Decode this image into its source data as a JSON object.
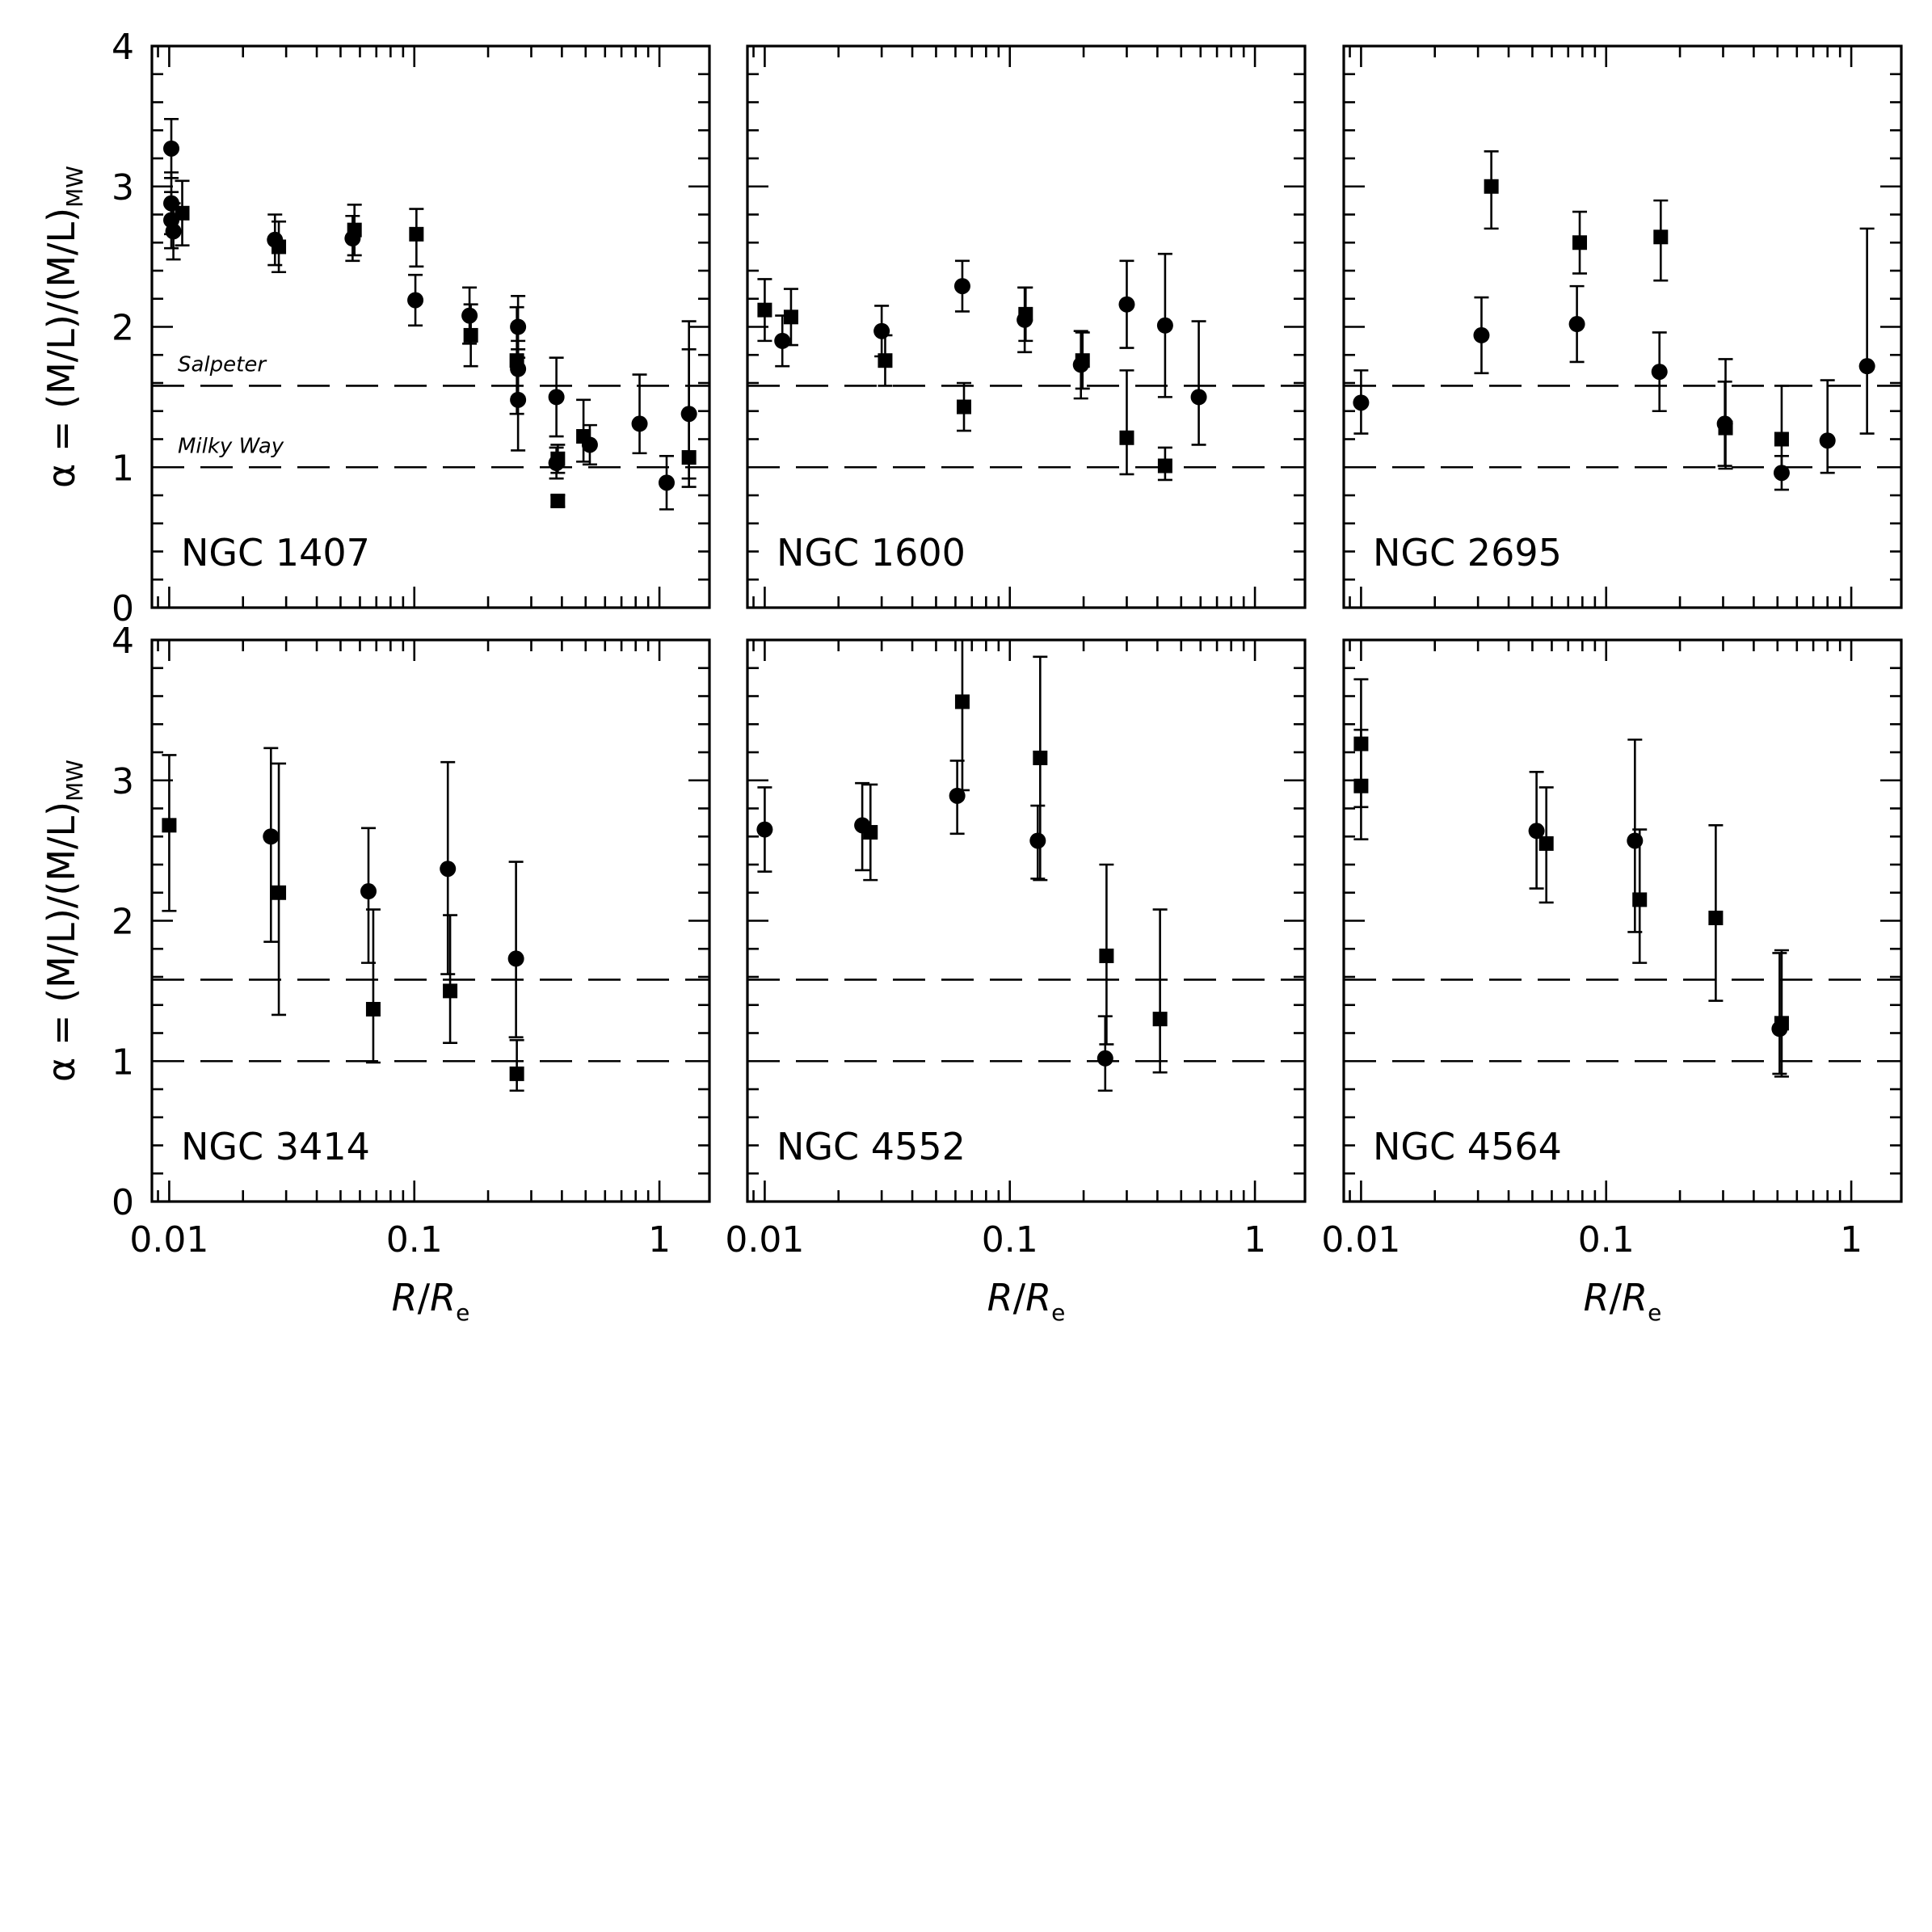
{
  "chart_data": {
    "type": "scatter",
    "layout": "2x3 grid of panels sharing axes",
    "xscale": "log",
    "xlim": [
      0.0085,
      1.6
    ],
    "ylim": [
      0,
      4
    ],
    "x_ticks": [
      "0.01",
      "0.1",
      "1"
    ],
    "y_ticks": [
      "0",
      "1",
      "2",
      "3",
      "4"
    ],
    "xlabel": {
      "main": "R",
      "slash": "/",
      "sub_base": "R",
      "subscript": "e"
    },
    "ylabel": {
      "prefix": "α = (M/L)/(M/L)",
      "subscript": "MW"
    },
    "reference_lines": [
      {
        "label": "Salpeter",
        "y": 1.58
      },
      {
        "label": "Milky Way",
        "y": 1.0
      }
    ],
    "marker_types": [
      "circle",
      "square"
    ],
    "panels": [
      {
        "label": "NGC 1407",
        "show_reference_labels": true,
        "circles": [
          {
            "x": 0.0102,
            "y": 3.27,
            "lo": 3.06,
            "hi": 3.48
          },
          {
            "x": 0.0102,
            "y": 2.88,
            "lo": 2.66,
            "hi": 3.1
          },
          {
            "x": 0.0102,
            "y": 2.76,
            "lo": 2.56,
            "hi": 2.96
          },
          {
            "x": 0.0104,
            "y": 2.68,
            "lo": 2.48,
            "hi": 2.88
          },
          {
            "x": 0.027,
            "y": 2.62,
            "lo": 2.44,
            "hi": 2.8
          },
          {
            "x": 0.056,
            "y": 2.63,
            "lo": 2.47,
            "hi": 2.79
          },
          {
            "x": 0.101,
            "y": 2.19,
            "lo": 2.01,
            "hi": 2.37
          },
          {
            "x": 0.168,
            "y": 2.08,
            "lo": 1.88,
            "hi": 2.28
          },
          {
            "x": 0.265,
            "y": 2.0,
            "lo": 1.78,
            "hi": 2.22
          },
          {
            "x": 0.265,
            "y": 1.7,
            "lo": 1.5,
            "hi": 1.9
          },
          {
            "x": 0.265,
            "y": 1.48,
            "lo": 1.12,
            "hi": 1.84
          },
          {
            "x": 0.38,
            "y": 1.5,
            "lo": 1.22,
            "hi": 1.78
          },
          {
            "x": 0.38,
            "y": 1.03,
            "lo": 0.92,
            "hi": 1.14
          },
          {
            "x": 0.52,
            "y": 1.16,
            "lo": 1.02,
            "hi": 1.3
          },
          {
            "x": 0.83,
            "y": 1.31,
            "lo": 1.1,
            "hi": 1.66
          },
          {
            "x": 1.07,
            "y": 0.89,
            "lo": 0.7,
            "hi": 1.08
          },
          {
            "x": 1.32,
            "y": 1.38,
            "lo": 0.92,
            "hi": 1.84
          }
        ],
        "squares": [
          {
            "x": 0.0113,
            "y": 2.81,
            "lo": 2.58,
            "hi": 3.04
          },
          {
            "x": 0.028,
            "y": 2.57,
            "lo": 2.39,
            "hi": 2.75
          },
          {
            "x": 0.057,
            "y": 2.69,
            "lo": 2.51,
            "hi": 2.87
          },
          {
            "x": 0.102,
            "y": 2.66,
            "lo": 2.43,
            "hi": 2.84
          },
          {
            "x": 0.17,
            "y": 1.94,
            "lo": 1.72,
            "hi": 2.16
          },
          {
            "x": 0.262,
            "y": 1.76,
            "lo": 1.38,
            "hi": 2.14
          },
          {
            "x": 0.385,
            "y": 1.06,
            "lo": 0.96,
            "hi": 1.16
          },
          {
            "x": 0.385,
            "y": 0.76,
            "lo": 0.72,
            "hi": 0.8
          },
          {
            "x": 0.49,
            "y": 1.22,
            "lo": 1.04,
            "hi": 1.48
          },
          {
            "x": 1.32,
            "y": 1.07,
            "lo": 0.86,
            "hi": 2.04
          }
        ]
      },
      {
        "label": "NGC 1600",
        "show_reference_labels": false,
        "circles": [
          {
            "x": 0.0118,
            "y": 1.9,
            "lo": 1.72,
            "hi": 2.08
          },
          {
            "x": 0.03,
            "y": 1.97,
            "lo": 1.79,
            "hi": 2.15
          },
          {
            "x": 0.064,
            "y": 2.29,
            "lo": 2.11,
            "hi": 2.47
          },
          {
            "x": 0.115,
            "y": 2.05,
            "lo": 1.82,
            "hi": 2.28
          },
          {
            "x": 0.195,
            "y": 1.73,
            "lo": 1.49,
            "hi": 1.97
          },
          {
            "x": 0.3,
            "y": 2.16,
            "lo": 1.85,
            "hi": 2.47
          },
          {
            "x": 0.43,
            "y": 2.01,
            "lo": 1.5,
            "hi": 2.52
          },
          {
            "x": 0.59,
            "y": 1.5,
            "lo": 1.16,
            "hi": 2.04
          }
        ],
        "squares": [
          {
            "x": 0.01,
            "y": 2.12,
            "lo": 1.9,
            "hi": 2.34
          },
          {
            "x": 0.0128,
            "y": 2.07,
            "lo": 1.87,
            "hi": 2.27
          },
          {
            "x": 0.031,
            "y": 1.76,
            "lo": 1.58,
            "hi": 1.94
          },
          {
            "x": 0.065,
            "y": 1.43,
            "lo": 1.26,
            "hi": 1.6
          },
          {
            "x": 0.116,
            "y": 2.09,
            "lo": 1.9,
            "hi": 2.28
          },
          {
            "x": 0.198,
            "y": 1.76,
            "lo": 1.56,
            "hi": 1.96
          },
          {
            "x": 0.3,
            "y": 1.21,
            "lo": 0.95,
            "hi": 1.69
          },
          {
            "x": 0.43,
            "y": 1.01,
            "lo": 0.91,
            "hi": 1.14
          }
        ]
      },
      {
        "label": "NGC 2695",
        "show_reference_labels": false,
        "circles": [
          {
            "x": 0.01,
            "y": 1.46,
            "lo": 1.24,
            "hi": 1.69
          },
          {
            "x": 0.031,
            "y": 1.94,
            "lo": 1.67,
            "hi": 2.21
          },
          {
            "x": 0.076,
            "y": 2.02,
            "lo": 1.75,
            "hi": 2.29
          },
          {
            "x": 0.165,
            "y": 1.68,
            "lo": 1.4,
            "hi": 1.96
          },
          {
            "x": 0.305,
            "y": 1.31,
            "lo": 1.01,
            "hi": 1.61
          },
          {
            "x": 0.52,
            "y": 0.96,
            "lo": 0.84,
            "hi": 1.08
          },
          {
            "x": 0.8,
            "y": 1.19,
            "lo": 0.96,
            "hi": 1.62
          },
          {
            "x": 1.16,
            "y": 1.72,
            "lo": 1.24,
            "hi": 2.7
          }
        ],
        "squares": [
          {
            "x": 0.034,
            "y": 3.0,
            "lo": 2.7,
            "hi": 3.25
          },
          {
            "x": 0.078,
            "y": 2.6,
            "lo": 2.38,
            "hi": 2.82
          },
          {
            "x": 0.167,
            "y": 2.64,
            "lo": 2.33,
            "hi": 2.9
          },
          {
            "x": 0.307,
            "y": 1.28,
            "lo": 0.99,
            "hi": 1.77
          },
          {
            "x": 0.52,
            "y": 1.2,
            "lo": 0.96,
            "hi": 1.58
          }
        ]
      },
      {
        "label": "NGC 3414",
        "show_reference_labels": false,
        "circles": [
          {
            "x": 0.026,
            "y": 2.6,
            "lo": 1.85,
            "hi": 3.23
          },
          {
            "x": 0.065,
            "y": 2.21,
            "lo": 1.7,
            "hi": 2.66
          },
          {
            "x": 0.137,
            "y": 2.37,
            "lo": 1.62,
            "hi": 3.13
          },
          {
            "x": 0.26,
            "y": 1.73,
            "lo": 1.17,
            "hi": 2.42
          }
        ],
        "squares": [
          {
            "x": 0.01,
            "y": 2.68,
            "lo": 2.07,
            "hi": 3.18
          },
          {
            "x": 0.028,
            "y": 2.2,
            "lo": 1.33,
            "hi": 3.12
          },
          {
            "x": 0.068,
            "y": 1.37,
            "lo": 0.99,
            "hi": 2.08
          },
          {
            "x": 0.14,
            "y": 1.5,
            "lo": 1.13,
            "hi": 2.04
          },
          {
            "x": 0.262,
            "y": 0.91,
            "lo": 0.79,
            "hi": 1.15
          }
        ]
      },
      {
        "label": "NGC 4552",
        "show_reference_labels": false,
        "circles": [
          {
            "x": 0.01,
            "y": 2.65,
            "lo": 2.35,
            "hi": 2.95
          },
          {
            "x": 0.025,
            "y": 2.68,
            "lo": 2.36,
            "hi": 2.98
          },
          {
            "x": 0.061,
            "y": 2.89,
            "lo": 2.62,
            "hi": 3.14
          },
          {
            "x": 0.13,
            "y": 2.57,
            "lo": 2.3,
            "hi": 2.82
          },
          {
            "x": 0.245,
            "y": 1.02,
            "lo": 0.79,
            "hi": 1.32
          }
        ],
        "squares": [
          {
            "x": 0.027,
            "y": 2.63,
            "lo": 2.29,
            "hi": 2.97
          },
          {
            "x": 0.064,
            "y": 3.56,
            "lo": 2.93,
            "hi": 4.0
          },
          {
            "x": 0.133,
            "y": 3.16,
            "lo": 2.29,
            "hi": 3.88
          },
          {
            "x": 0.248,
            "y": 1.75,
            "lo": 1.12,
            "hi": 2.4
          },
          {
            "x": 0.41,
            "y": 1.3,
            "lo": 0.92,
            "hi": 2.08
          }
        ]
      },
      {
        "label": "NGC 4564",
        "show_reference_labels": false,
        "circles": [
          {
            "x": 0.052,
            "y": 2.64,
            "lo": 2.23,
            "hi": 3.06
          },
          {
            "x": 0.131,
            "y": 2.57,
            "lo": 1.92,
            "hi": 3.29
          },
          {
            "x": 0.51,
            "y": 1.23,
            "lo": 0.91,
            "hi": 1.77
          }
        ],
        "squares": [
          {
            "x": 0.01,
            "y": 3.26,
            "lo": 2.81,
            "hi": 3.72
          },
          {
            "x": 0.01,
            "y": 2.96,
            "lo": 2.58,
            "hi": 3.36
          },
          {
            "x": 0.057,
            "y": 2.55,
            "lo": 2.13,
            "hi": 2.95
          },
          {
            "x": 0.137,
            "y": 2.15,
            "lo": 1.7,
            "hi": 2.65
          },
          {
            "x": 0.28,
            "y": 2.02,
            "lo": 1.43,
            "hi": 2.68
          },
          {
            "x": 0.52,
            "y": 1.27,
            "lo": 0.89,
            "hi": 1.79
          }
        ]
      }
    ]
  }
}
